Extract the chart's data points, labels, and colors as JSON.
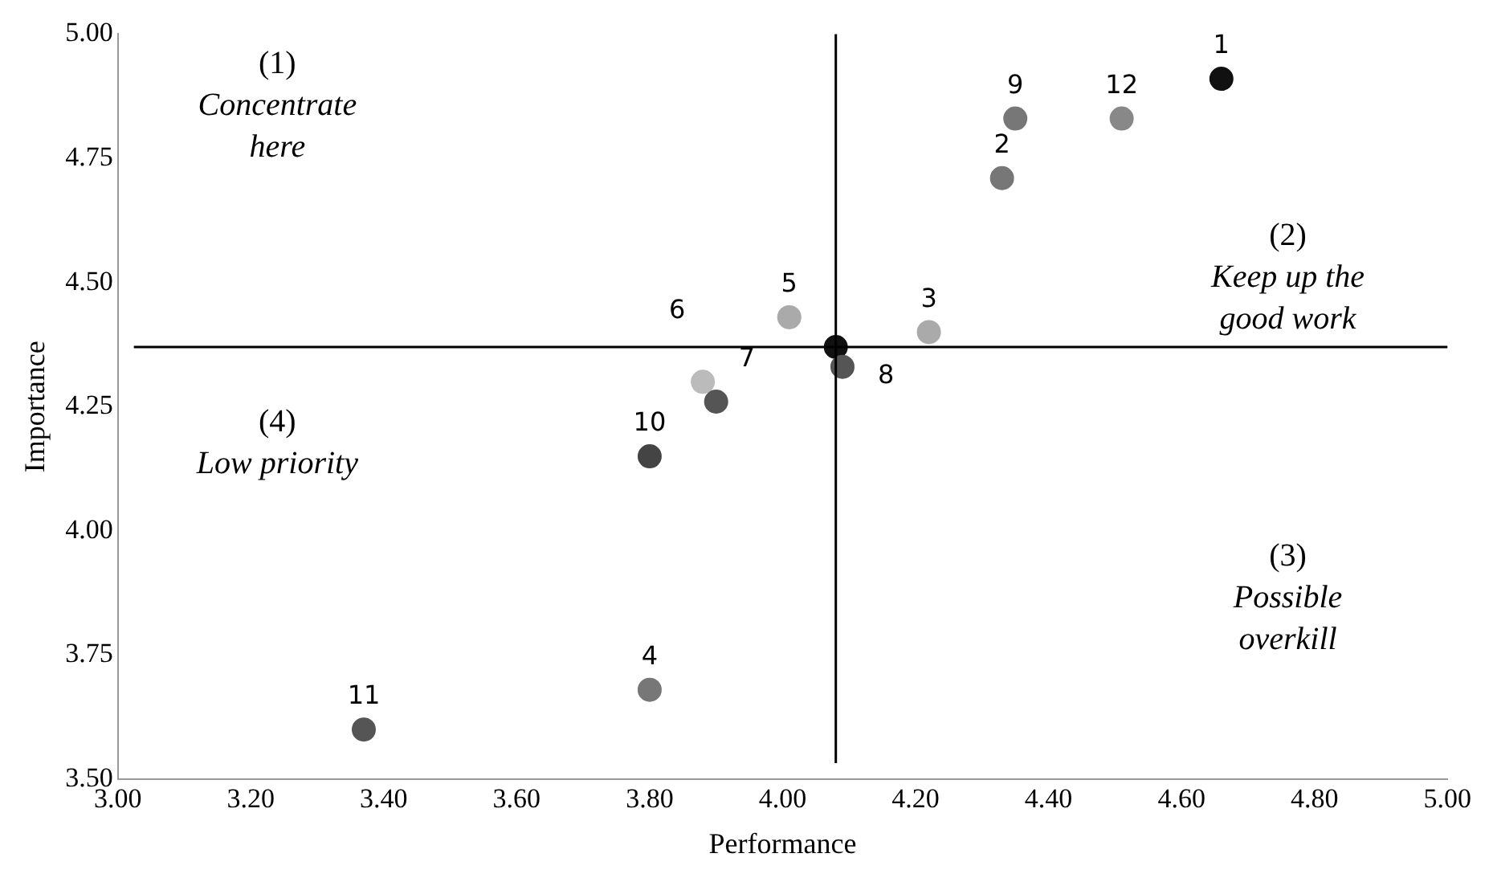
{
  "chart_data": {
    "type": "scatter",
    "xlabel": "Performance",
    "ylabel": "Importance",
    "x": [
      4.66,
      4.35,
      4.51,
      4.33,
      4.01,
      4.22,
      4.08,
      4.09,
      3.88,
      3.9,
      3.8,
      3.8,
      3.37
    ],
    "values": [
      4.91,
      4.83,
      4.83,
      4.71,
      4.43,
      4.4,
      4.37,
      4.33,
      4.3,
      4.26,
      4.15,
      3.68,
      3.6
    ],
    "colors": [
      "#111111",
      "#777777",
      "#888888",
      "#777777",
      "#aaaaaa",
      "#aaaaaa",
      "#111111",
      "#555555",
      "#bbbbbb",
      "#555555",
      "#444444",
      "#777777",
      "#555555"
    ],
    "xlim": [
      3.0,
      5.0
    ],
    "xticks": [
      {
        "value": 3.0,
        "label": "3.00"
      },
      {
        "value": 3.2,
        "label": "3.20"
      },
      {
        "value": 3.4,
        "label": "3.40"
      },
      {
        "value": 3.6,
        "label": "3.60"
      },
      {
        "value": 3.8,
        "label": "3.80"
      },
      {
        "value": 4.0,
        "label": "4.00"
      },
      {
        "value": 4.2,
        "label": "4.20"
      },
      {
        "value": 4.4,
        "label": "4.40"
      },
      {
        "value": 4.6,
        "label": "4.60"
      },
      {
        "value": 4.8,
        "label": "4.80"
      },
      {
        "value": 5.0,
        "label": "5.00"
      }
    ],
    "ylim": [
      3.5,
      5.0
    ],
    "yticks": [
      {
        "value": 3.5,
        "label": "3.50"
      },
      {
        "value": 3.75,
        "label": "3.75"
      },
      {
        "value": 4.0,
        "label": "4.00"
      },
      {
        "value": 4.25,
        "label": "4.25"
      },
      {
        "value": 4.5,
        "label": "4.50"
      },
      {
        "value": 4.75,
        "label": "4.75"
      },
      {
        "value": 5.0,
        "label": "5.00"
      }
    ],
    "ref_lines": [
      {
        "axis": "x",
        "value": 4.08,
        "color": "#000000"
      },
      {
        "axis": "y",
        "value": 4.37,
        "color": "#000000"
      }
    ],
    "annotations": [
      "(1)\nConcentrate\nhere",
      "(2)\nKeep up the\ngood work",
      "(3)\nPossible\noverkill",
      "(4)\nLow priority",
      {
        "text": "1",
        "x": 4.66,
        "y": 4.91
      },
      {
        "text": "9",
        "x": 4.35,
        "y": 4.83
      },
      {
        "text": "12",
        "x": 4.51,
        "y": 4.83
      },
      {
        "text": "2",
        "x": 4.33,
        "y": 4.71
      },
      {
        "text": "5",
        "x": 4.01,
        "y": 4.43
      },
      {
        "text": "3",
        "x": 4.22,
        "y": 4.4
      },
      {
        "text": "8",
        "x": 4.09,
        "y": 4.33
      },
      {
        "text": "6",
        "x": 3.88,
        "y": 4.3
      },
      {
        "text": "7",
        "x": 3.9,
        "y": 4.26
      },
      {
        "text": "10",
        "x": 3.8,
        "y": 4.15
      },
      {
        "text": "4",
        "x": 3.8,
        "y": 3.68
      },
      {
        "text": "11",
        "x": 3.37,
        "y": 3.6
      }
    ],
    "marker": "circle",
    "grid": false,
    "legend": false
  }
}
